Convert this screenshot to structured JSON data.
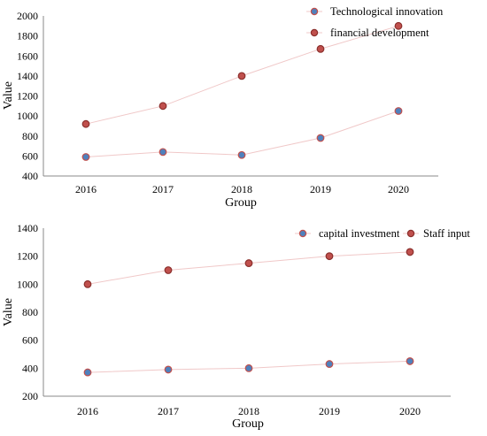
{
  "chart_data": [
    {
      "type": "scatter",
      "categories": [
        "2016",
        "2017",
        "2018",
        "2019",
        "2020"
      ],
      "series": [
        {
          "name": "Technological innovation",
          "values": [
            590,
            640,
            610,
            780,
            1050
          ],
          "color": "#4f81bd",
          "edge": "#c0504d"
        },
        {
          "name": "financial development",
          "values": [
            920,
            1100,
            1400,
            1670,
            1900
          ],
          "color": "#c0504d",
          "edge": "#8b2f2c"
        }
      ],
      "xlabel": "Group",
      "ylabel": "Value",
      "ylim": [
        400,
        2000
      ],
      "yticks": [
        "400",
        "600",
        "800",
        "1000",
        "1200",
        "1400",
        "1600",
        "1800",
        "2000"
      ],
      "line_color": "#f0c8c8",
      "grid": false,
      "legend_position": "top-right"
    },
    {
      "type": "scatter",
      "categories": [
        "2016",
        "2017",
        "2018",
        "2019",
        "2020"
      ],
      "series": [
        {
          "name": "capital investment",
          "values": [
            370,
            390,
            400,
            430,
            450
          ],
          "color": "#4f81bd",
          "edge": "#c0504d"
        },
        {
          "name": "Staff input",
          "values": [
            1000,
            1100,
            1150,
            1200,
            1230
          ],
          "color": "#c0504d",
          "edge": "#8b2f2c"
        }
      ],
      "xlabel": "Group",
      "ylabel": "Value",
      "ylim": [
        200,
        1400
      ],
      "yticks": [
        "200",
        "400",
        "600",
        "800",
        "1000",
        "1200",
        "1400"
      ],
      "line_color": "#f0c8c8",
      "grid": false,
      "legend_position": "top-right"
    }
  ]
}
